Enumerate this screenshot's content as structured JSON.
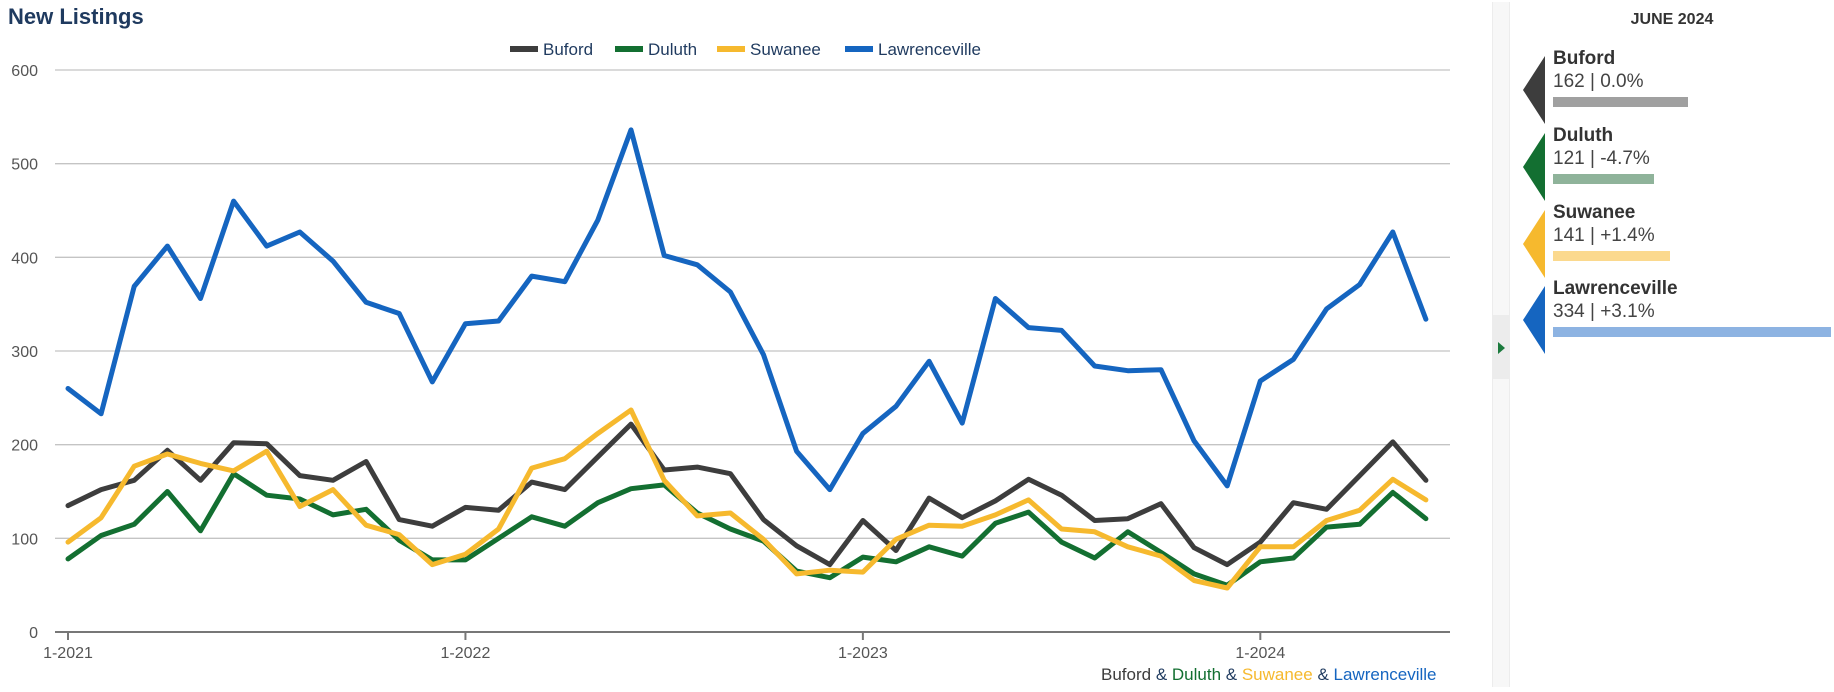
{
  "title": "New Listings",
  "chart_data": {
    "type": "line",
    "title": "New Listings",
    "x_tick_labels": [
      "1-2021",
      "1-2022",
      "1-2023",
      "1-2024"
    ],
    "x_start": "2021-01",
    "x_end": "2024-06",
    "ylim": [
      0,
      600
    ],
    "y_ticks": [
      0,
      100,
      200,
      300,
      400,
      500,
      600
    ],
    "grid": true,
    "legend_position": "top-center",
    "series": [
      {
        "name": "Buford",
        "color": "#3d3d3d",
        "values": [
          135,
          152,
          162,
          194,
          162,
          202,
          201,
          167,
          162,
          182,
          120,
          113,
          133,
          130,
          160,
          152,
          187,
          222,
          173,
          176,
          169,
          120,
          92,
          72,
          119,
          87,
          143,
          122,
          140,
          163,
          146,
          119,
          121,
          137,
          90,
          72,
          96,
          138,
          131,
          167,
          203,
          162
        ]
      },
      {
        "name": "Duluth",
        "color": "#136f31",
        "values": [
          78,
          103,
          115,
          150,
          108,
          169,
          146,
          142,
          125,
          131,
          98,
          77,
          77,
          100,
          123,
          113,
          138,
          153,
          157,
          127,
          110,
          97,
          65,
          58,
          80,
          75,
          91,
          81,
          116,
          128,
          96,
          79,
          107,
          85,
          62,
          50,
          75,
          79,
          112,
          115,
          149,
          121
        ]
      },
      {
        "name": "Suwanee",
        "color": "#f6b92e",
        "values": [
          96,
          122,
          177,
          190,
          180,
          172,
          193,
          134,
          152,
          114,
          104,
          72,
          83,
          110,
          175,
          185,
          212,
          237,
          162,
          124,
          127,
          99,
          62,
          66,
          64,
          99,
          114,
          113,
          125,
          141,
          110,
          107,
          91,
          81,
          55,
          47,
          91,
          91,
          119,
          130,
          163,
          141
        ]
      },
      {
        "name": "Lawrenceville",
        "color": "#1565c0",
        "values": [
          260,
          233,
          369,
          412,
          356,
          460,
          412,
          427,
          396,
          352,
          340,
          267,
          329,
          332,
          380,
          374,
          440,
          536,
          402,
          392,
          363,
          296,
          193,
          152,
          212,
          241,
          289,
          223,
          356,
          325,
          322,
          284,
          279,
          280,
          204,
          156,
          268,
          291,
          345,
          371,
          427,
          334
        ]
      }
    ]
  },
  "side_panel": {
    "date_label": "JUNE 2024",
    "items": [
      {
        "name": "Buford",
        "value_text": "162 | 0.0%",
        "color": "#3d3d3d",
        "bar_color": "#a0a0a0",
        "value": 162
      },
      {
        "name": "Duluth",
        "value_text": "121 | -4.7%",
        "color": "#136f31",
        "bar_color": "#8fb39a",
        "value": 121
      },
      {
        "name": "Suwanee",
        "value_text": "141 | +1.4%",
        "color": "#f6b92e",
        "bar_color": "#fbd98e",
        "value": 141
      },
      {
        "name": "Lawrenceville",
        "value_text": "334 | +3.1%",
        "color": "#1565c0",
        "bar_color": "#8db3e2",
        "value": 334
      }
    ]
  },
  "footer": {
    "parts": [
      {
        "text": "Buford",
        "color": "#3d3d3d"
      },
      {
        "text": " & ",
        "color": "#1f3a5f"
      },
      {
        "text": "Duluth",
        "color": "#136f31"
      },
      {
        "text": " & ",
        "color": "#1f3a5f"
      },
      {
        "text": "Suwanee",
        "color": "#f6b92e"
      },
      {
        "text": " & ",
        "color": "#1f3a5f"
      },
      {
        "text": "Lawrenceville",
        "color": "#1565c0"
      }
    ]
  }
}
